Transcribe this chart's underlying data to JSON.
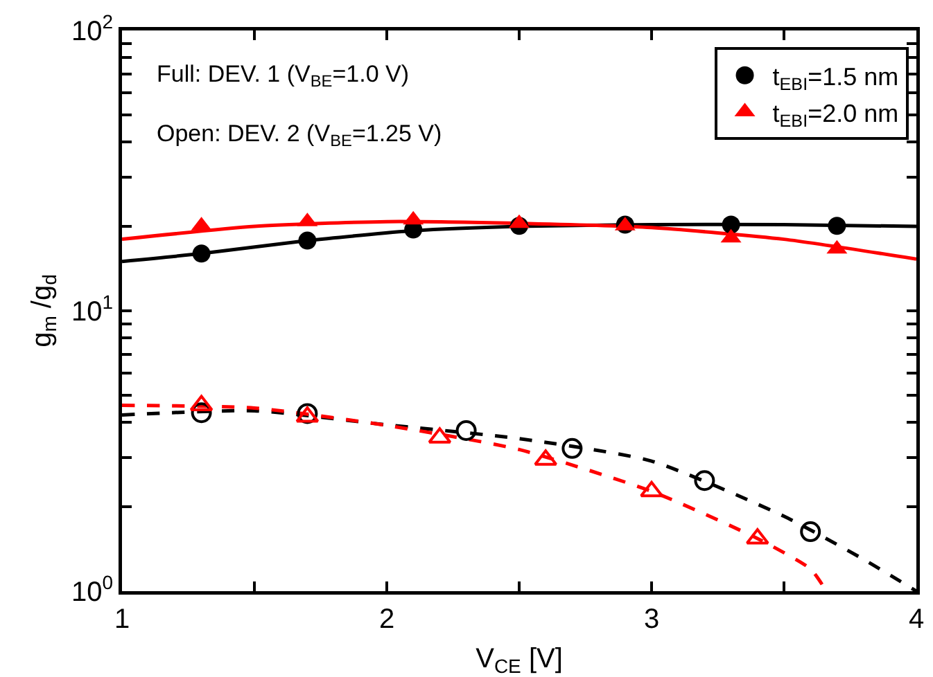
{
  "chart_data": {
    "type": "scatter",
    "xlabel": "V$_{CE}$ [V]",
    "ylabel": "g$_{m}$ /g$_{d}$",
    "log": "y",
    "xlim": [
      1,
      4
    ],
    "ylim": [
      1,
      100
    ],
    "xticks": [
      1,
      {
        "value": 1.5,
        "label": null
      },
      2,
      {
        "value": 2.5,
        "label": null
      },
      3,
      {
        "value": 3.5,
        "label": null
      },
      4
    ],
    "yticks": [
      {
        "value": 1,
        "label": "10$^{0}$"
      },
      {
        "value": 2,
        "label": null
      },
      {
        "value": 3,
        "label": null
      },
      {
        "value": 4,
        "label": null
      },
      {
        "value": 5,
        "label": null
      },
      {
        "value": 6,
        "label": null
      },
      {
        "value": 7,
        "label": null
      },
      {
        "value": 8,
        "label": null
      },
      {
        "value": 9,
        "label": null
      },
      {
        "value": 10,
        "label": "10$^{1}$"
      },
      {
        "value": 20,
        "label": null
      },
      {
        "value": 30,
        "label": null
      },
      {
        "value": 40,
        "label": null
      },
      {
        "value": 50,
        "label": null
      },
      {
        "value": 60,
        "label": null
      },
      {
        "value": 70,
        "label": null
      },
      {
        "value": 80,
        "label": null
      },
      {
        "value": 90,
        "label": null
      },
      {
        "value": 100,
        "label": "10$^{2}$"
      }
    ],
    "grid": false,
    "legend": "top right",
    "annotations": [
      "Full: DEV. 1 (V$_{BE}$=1.0 V)",
      "Open: DEV. 2 (V$_{BE}$=1.25 V)"
    ],
    "series": [
      {
        "type": "line",
        "color": "#000000",
        "marker": "none",
        "line_style": "solid",
        "x": [
          1,
          1.3,
          1.7,
          2.1,
          2.5,
          3,
          3.5,
          4
        ],
        "values": [
          15,
          16,
          17.8,
          19.3,
          20,
          20.3,
          20.3,
          20
        ]
      },
      {
        "type": "line",
        "color": "#ff0000",
        "marker": "none",
        "line_style": "solid",
        "x": [
          1,
          1.5,
          2,
          2.5,
          3,
          3.5,
          4
        ],
        "values": [
          18,
          20,
          20.8,
          20.5,
          19.8,
          18,
          15.3
        ]
      },
      {
        "type": "line",
        "color": "#000000",
        "marker": "none",
        "line_style": "dashed",
        "x": [
          1,
          1.5,
          2,
          2.5,
          3,
          3.5,
          3.8,
          4
        ],
        "values": [
          4.25,
          4.4,
          3.92,
          3.5,
          2.91,
          1.85,
          1.3,
          1
        ]
      },
      {
        "type": "line",
        "color": "#ff0000",
        "marker": "none",
        "line_style": "dashed",
        "x": [
          1,
          1.5,
          2,
          2.5,
          3,
          3.4,
          3.6,
          3.66
        ],
        "values": [
          4.6,
          4.5,
          3.9,
          3.2,
          2.27,
          1.54,
          1.2,
          1
        ]
      },
      {
        "name": "t$_{EBI}$=1.5 nm",
        "color": "#000000",
        "marker": "circle",
        "x": [
          1.3,
          1.7,
          2.1,
          2.5,
          2.9,
          3.3,
          3.7
        ],
        "values": [
          16,
          17.8,
          19.5,
          20.1,
          20.3,
          20.3,
          20.1
        ]
      },
      {
        "name": "t$_{EBI}$=2.0 nm",
        "color": "#ff0000",
        "marker": "triangle",
        "x": [
          1.3,
          1.7,
          2.1,
          2.5,
          2.9,
          3.3,
          3.7
        ],
        "values": [
          20.1,
          20.8,
          21.1,
          20.5,
          20.1,
          18.2,
          16.6
        ]
      },
      {
        "color": "#000000",
        "marker": "circle-open",
        "x": [
          1.3,
          1.7,
          2.3,
          2.7,
          3.2,
          3.6
        ],
        "values": [
          4.33,
          4.3,
          3.74,
          3.23,
          2.48,
          1.63
        ]
      },
      {
        "color": "#ff0000",
        "marker": "triangle-open",
        "x": [
          1.3,
          1.7,
          2.2,
          2.6,
          3.0,
          3.4
        ],
        "values": [
          4.6,
          4.19,
          3.53,
          2.94,
          2.27,
          1.54
        ]
      }
    ]
  }
}
